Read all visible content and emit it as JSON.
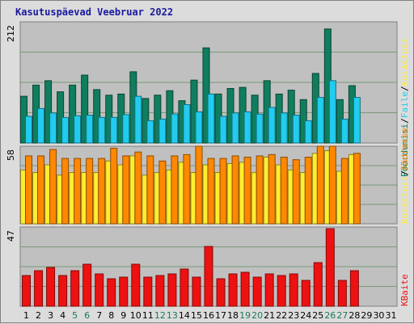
{
  "chart_data": {
    "type": "bar",
    "title": "Kasutuspäevad Veebruar 2022",
    "days": [
      "1",
      "2",
      "3",
      "4",
      "5",
      "6",
      "7",
      "8",
      "9",
      "10",
      "11",
      "12",
      "13",
      "14",
      "15",
      "16",
      "17",
      "18",
      "19",
      "20",
      "21",
      "22",
      "23",
      "24",
      "25",
      "26",
      "27",
      "28",
      "29",
      "30",
      "31"
    ],
    "weekend_days": [
      "5",
      "6",
      "12",
      "13",
      "19",
      "20",
      "26",
      "27"
    ],
    "panels": [
      {
        "ymax": 212,
        "ytick_label": "212",
        "series": [
          {
            "name": "Pöördumisi",
            "color": "#107e5e",
            "values": [
              84,
              104,
              112,
              92,
              104,
              122,
              96,
              86,
              88,
              128,
              80,
              86,
              94,
              76,
              113,
              171,
              88,
              98,
              100,
              86,
              112,
              88,
              95,
              78,
              125,
              205,
              78,
              103,
              null,
              null,
              null
            ]
          },
          {
            "name": "Faile",
            "color": "#22ccee",
            "values": [
              48,
              62,
              54,
              46,
              49,
              50,
              46,
              46,
              51,
              84,
              40,
              43,
              52,
              69,
              56,
              88,
              48,
              54,
              56,
              52,
              64,
              54,
              50,
              40,
              82,
              112,
              43,
              82,
              null,
              null,
              null
            ]
          }
        ]
      },
      {
        "ymax": 58,
        "ytick_label": "58",
        "series": [
          {
            "name": "Külastusi",
            "color": "#ffee30",
            "values": [
              42,
              40,
              46,
              38,
              40,
              40,
              40,
              49,
              46,
              53,
              38,
              40,
              42,
              48,
              40,
              46,
              40,
              47,
              48,
              40,
              52,
              46,
              42,
              40,
              55,
              57,
              41,
              54,
              null,
              null,
              null
            ]
          },
          {
            "name": "Aadresse",
            "color": "#ff8800",
            "values": [
              53,
              53,
              58,
              51,
              51,
              51,
              51,
              59,
              53,
              56,
              53,
              49,
              53,
              54,
              62,
              51,
              51,
              53,
              52,
              53,
              54,
              52,
              50,
              52,
              65,
              65,
              51,
              55,
              null,
              null,
              null
            ]
          }
        ]
      },
      {
        "ymax": 47,
        "ytick_label": "47",
        "series": [
          {
            "name": "KBaite",
            "color": "#ee1111",
            "values": [
              19,
              22,
              24,
              19,
              22,
              26,
              20,
              17,
              18,
              26,
              18,
              19,
              20,
              23,
              18,
              37,
              17,
              20,
              21,
              18,
              20,
              19,
              20,
              16,
              27,
              48,
              16,
              22,
              null,
              null,
              null
            ]
          }
        ]
      }
    ],
    "right_labels": {
      "panel1": [
        "Pöördumisi",
        "/",
        "Faile",
        "/",
        "Külastusi"
      ],
      "panel2": [
        "Külastusi",
        "/",
        "Aadresse"
      ],
      "panel3": [
        "KBaite"
      ]
    }
  }
}
